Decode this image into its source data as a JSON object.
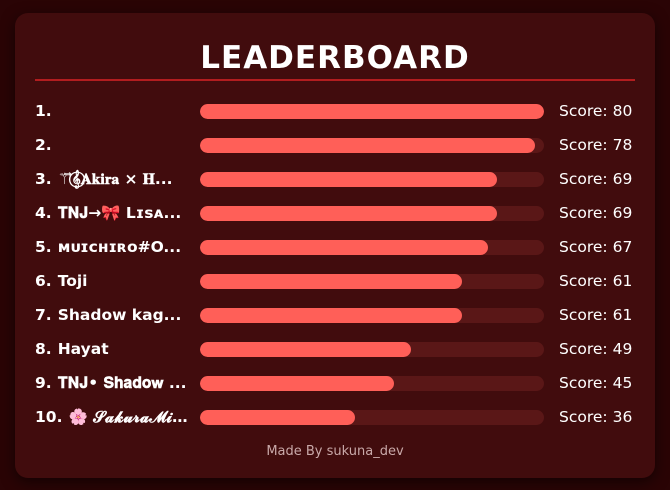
{
  "leaderboard": {
    "title": "LEADERBOARD",
    "max_score": 80,
    "footer": "Made By sukuna_dev",
    "score_prefix": "Score:",
    "colors": {
      "background": "#2a0405",
      "card": "#410c0d",
      "accent": "#ff5f58",
      "track": "#5a1717",
      "divider": "#b21d1f"
    },
    "entries": [
      {
        "rank": "1.",
        "name": "",
        "score": 80
      },
      {
        "rank": "2.",
        "name": "",
        "score": 78
      },
      {
        "rank": "3.",
        "name": "⚚⃗𝄞⃝𝐀𝐤𝐢𝐫𝐚 × 𝐇...",
        "score": 69
      },
      {
        "rank": "4.",
        "name": "𝐓𝐍𝐉→🎀 Lɪsᴀ...",
        "score": 69
      },
      {
        "rank": "5.",
        "name": "ᴍᴜɪᴄʜɪʀᴏ#O...",
        "score": 67
      },
      {
        "rank": "6.",
        "name": "Toji",
        "score": 61
      },
      {
        "rank": "7.",
        "name": "Shadow kag...",
        "score": 61
      },
      {
        "rank": "8.",
        "name": "Hayat",
        "score": 49
      },
      {
        "rank": "9.",
        "name": "𝐓𝐍𝐉• 𝐒𝐡𝐚𝐝𝐨𝐰 ...",
        "score": 45
      },
      {
        "rank": "10.",
        "name": "🌸 𝓢𝓪𝓴𝓾𝓻𝓪𝓜𝓲𝓷𝓪𝓽𝓸",
        "score": 36
      }
    ]
  }
}
